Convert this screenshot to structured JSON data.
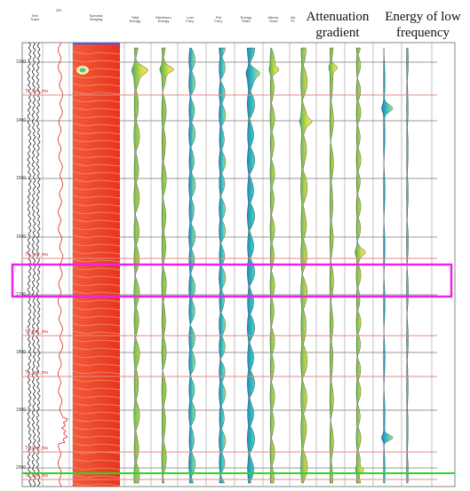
{
  "headers": {
    "text_trace": "Text\nTrace",
    "gr_top": "GR",
    "spectral": "Spectral\nImaging",
    "total_energy": "Total\nEnergy",
    "maximum_energy": "Maximum\nEnergy",
    "low_freq": "Low\nFreq.",
    "full_freq": "Full\nFreq.",
    "energy_ratio": "Energy\nRatio",
    "atten_grad": "Attenu.\nGrad.",
    "atten_p": "Att.\nPr."
  },
  "callouts": {
    "attenuation": "Attenuation gradient",
    "low_energy": "Energy of low frequency"
  },
  "depth_ticks": [
    "1300",
    "1400",
    "1500",
    "1600",
    "1700",
    "1800",
    "1900",
    "2000"
  ],
  "zone_labels": [
    "Tk_lym_ma",
    "Tk_lym_ma",
    "Tk_lym_ma",
    "Tk_lym_ma",
    "Tk_lym_ma",
    "Tk_lym_ma"
  ],
  "colors": {
    "spectral_bg": "#ee3a22",
    "highlight": "#ee22ee",
    "zone_line": "#e8888a",
    "green_line": "#22dd22"
  }
}
